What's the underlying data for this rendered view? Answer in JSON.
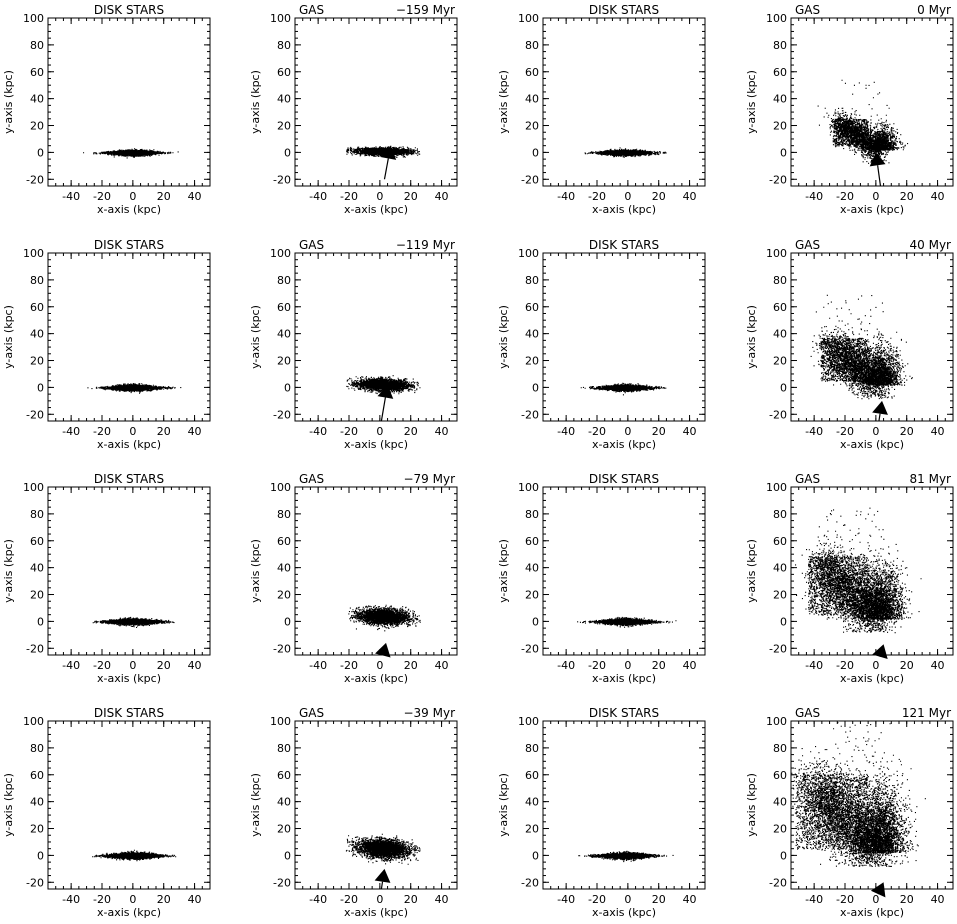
{
  "chart_data": {
    "type": "scatter",
    "axes": {
      "xlabel": "x-axis (kpc)",
      "ylabel": "y-axis (kpc)",
      "xlim": [
        -55,
        50
      ],
      "ylim": [
        -25,
        100
      ],
      "xticks": [
        -40,
        -20,
        0,
        20,
        40
      ],
      "yticks": [
        -20,
        0,
        20,
        40,
        60,
        80,
        100
      ]
    },
    "panels": [
      {
        "title": "DISK STARS",
        "kind": "stars",
        "cx": 0,
        "cy": 0,
        "spread": 1
      },
      {
        "title": "GAS",
        "time": "−159 Myr",
        "kind": "gas",
        "stage": 0,
        "arrow": [
          3,
          -20,
          7,
          5
        ]
      },
      {
        "title": "DISK STARS",
        "kind": "stars",
        "cx": -2,
        "cy": 0,
        "spread": 1
      },
      {
        "title": "GAS",
        "time": "0 Myr",
        "kind": "gas",
        "stage": 4,
        "arrow": [
          3,
          -25,
          0,
          0
        ]
      },
      {
        "title": "DISK STARS",
        "kind": "stars",
        "cx": 0,
        "cy": 0,
        "spread": 1.05
      },
      {
        "title": "GAS",
        "time": "−119 Myr",
        "kind": "gas",
        "stage": 1,
        "arrow": [
          1,
          -25,
          5,
          2
        ]
      },
      {
        "title": "DISK STARS",
        "kind": "stars",
        "cx": -2,
        "cy": 0,
        "spread": 1.05
      },
      {
        "title": "GAS",
        "time": "40 Myr",
        "kind": "gas",
        "stage": 5,
        "arrow": [
          2,
          -25,
          4,
          -10
        ]
      },
      {
        "title": "DISK STARS",
        "kind": "stars",
        "cx": 0,
        "cy": 0,
        "spread": 1.1
      },
      {
        "title": "GAS",
        "time": "−79 Myr",
        "kind": "gas",
        "stage": 2,
        "arrow": [
          2,
          -25,
          4,
          -16
        ]
      },
      {
        "title": "DISK STARS",
        "kind": "stars",
        "cx": -2,
        "cy": 0,
        "spread": 1.1
      },
      {
        "title": "GAS",
        "time": "81 Myr",
        "kind": "gas",
        "stage": 6,
        "arrow": [
          3,
          -25,
          5,
          -17
        ]
      },
      {
        "title": "DISK STARS",
        "kind": "stars",
        "cx": 0,
        "cy": 0,
        "spread": 1.1
      },
      {
        "title": "GAS",
        "time": "−39 Myr",
        "kind": "gas",
        "stage": 3,
        "arrow": [
          1,
          -25,
          3,
          -10
        ]
      },
      {
        "title": "DISK STARS",
        "kind": "stars",
        "cx": -2,
        "cy": 0,
        "spread": 1.1
      },
      {
        "title": "GAS",
        "time": "121 Myr",
        "kind": "gas",
        "stage": 7,
        "arrow": [
          3,
          -25,
          5,
          -20
        ]
      }
    ]
  }
}
